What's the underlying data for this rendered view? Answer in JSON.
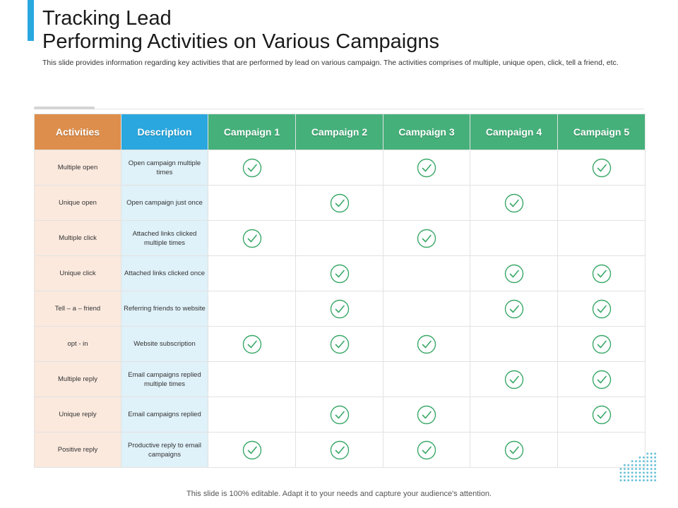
{
  "header": {
    "title_line1": "Tracking Lead",
    "title_line2": "Performing Activities on Various Campaigns",
    "subtitle": "This slide provides information regarding key activities that are performed by lead on various campaign. The activities comprises of multiple, unique open, click, tell a friend, etc."
  },
  "colors": {
    "accent": "#29a8e0",
    "activities_header": "#dd8e4c",
    "description_header": "#2aa7de",
    "campaign_header": "#45b07a",
    "activities_cell": "#fbe9de",
    "description_cell": "#dff1f9",
    "check": "#3aa868"
  },
  "table": {
    "headers": [
      "Activities",
      "Description",
      "Campaign 1",
      "Campaign 2",
      "Campaign 3",
      "Campaign 4",
      "Campaign 5"
    ],
    "check_icon": "check-circle-icon",
    "rows": [
      {
        "activity": "Multiple open",
        "description": "Open campaign multiple times",
        "checks": [
          true,
          false,
          true,
          false,
          true
        ]
      },
      {
        "activity": "Unique open",
        "description": "Open campaign just once",
        "checks": [
          false,
          true,
          false,
          true,
          false
        ]
      },
      {
        "activity": "Multiple  click",
        "description": "Attached links clicked multiple times",
        "checks": [
          true,
          false,
          true,
          false,
          false
        ]
      },
      {
        "activity": "Unique click",
        "description": "Attached links clicked once",
        "checks": [
          false,
          true,
          false,
          true,
          true
        ]
      },
      {
        "activity": "Tell – a – friend",
        "description": "Referring friends to website",
        "checks": [
          false,
          true,
          false,
          true,
          true
        ]
      },
      {
        "activity": "opt - in",
        "description": "Website subscription",
        "checks": [
          true,
          true,
          true,
          false,
          true
        ]
      },
      {
        "activity": "Multiple  reply",
        "description": "Email  campaigns replied multiple times",
        "checks": [
          false,
          false,
          false,
          true,
          true
        ]
      },
      {
        "activity": "Unique reply",
        "description": "Email  campaigns replied",
        "checks": [
          false,
          true,
          true,
          false,
          true
        ]
      },
      {
        "activity": "Positive reply",
        "description": "Productive reply to email campaigns",
        "checks": [
          true,
          true,
          true,
          true,
          false
        ]
      }
    ]
  },
  "footer": {
    "text": "This slide is 100% editable. Adapt it to your needs and capture your audience's attention."
  }
}
